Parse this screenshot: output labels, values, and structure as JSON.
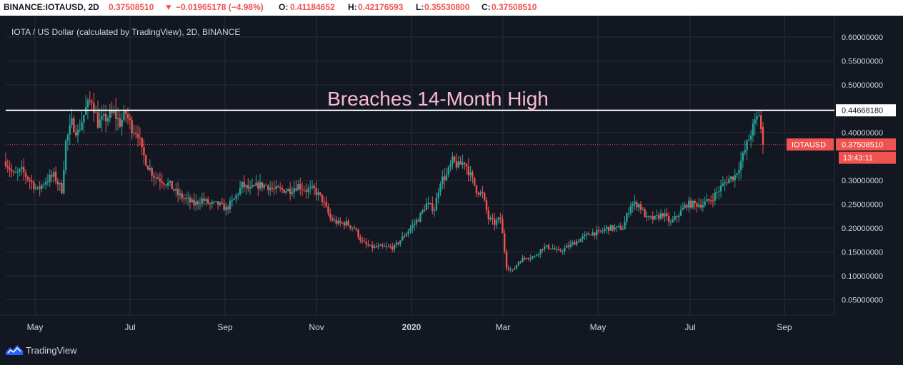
{
  "header": {
    "symbol": "BINANCE:IOTAUSD, 2D",
    "last": "0.37508510",
    "change_arrow": "▼",
    "change": "−0.01965178 (−4.98%)",
    "open_label": "O:",
    "open": "0.41184652",
    "high_label": "H:",
    "high": "0.42176593",
    "low_label": "L:",
    "low": "0.35530800",
    "close_label": "C:",
    "close": "0.37508510"
  },
  "legend": "IOTA / US Dollar (calculated by TradingView), 2D, BINANCE",
  "annotation": "Breaches 14-Month High",
  "price_tags": {
    "level_value": "0.44668180",
    "symbol": "IOTAUSD",
    "price": "0.37508510",
    "countdown": "13:43:11"
  },
  "footer": {
    "brand": "TradingView"
  },
  "colors": {
    "up": "#26a69a",
    "down": "#ef5350",
    "background": "#131722",
    "grid": "#2a2e39",
    "annotation": "#f8bbd0",
    "line": "#ffffff"
  },
  "chart_data": {
    "type": "candlestick",
    "y_ticks": [
      "0.60000000",
      "0.55000000",
      "0.50000000",
      "0.40000000",
      "0.30000000",
      "0.25000000",
      "0.20000000",
      "0.15000000",
      "0.10000000",
      "0.05000000"
    ],
    "x_ticks": [
      "May",
      "Jul",
      "Sep",
      "Nov",
      "2020",
      "Mar",
      "May",
      "Jul",
      "Sep"
    ],
    "ylim": [
      0.03,
      0.64
    ],
    "horizontal_level": 0.4466818,
    "last_price": 0.3750851,
    "close_path": [
      [
        0,
        0.34
      ],
      [
        4,
        0.31
      ],
      [
        8,
        0.32
      ],
      [
        12,
        0.3
      ],
      [
        16,
        0.28
      ],
      [
        20,
        0.3
      ],
      [
        24,
        0.31
      ],
      [
        28,
        0.28
      ],
      [
        30,
        0.38
      ],
      [
        33,
        0.42
      ],
      [
        36,
        0.4
      ],
      [
        40,
        0.45
      ],
      [
        43,
        0.47
      ],
      [
        46,
        0.42
      ],
      [
        50,
        0.43
      ],
      [
        54,
        0.44
      ],
      [
        57,
        0.42
      ],
      [
        60,
        0.44
      ],
      [
        63,
        0.41
      ],
      [
        66,
        0.4
      ],
      [
        68,
        0.36
      ],
      [
        71,
        0.33
      ],
      [
        74,
        0.31
      ],
      [
        78,
        0.3
      ],
      [
        82,
        0.29
      ],
      [
        86,
        0.27
      ],
      [
        90,
        0.26
      ],
      [
        94,
        0.25
      ],
      [
        98,
        0.26
      ],
      [
        102,
        0.25
      ],
      [
        106,
        0.25
      ],
      [
        110,
        0.24
      ],
      [
        114,
        0.26
      ],
      [
        118,
        0.29
      ],
      [
        122,
        0.28
      ],
      [
        126,
        0.29
      ],
      [
        130,
        0.29
      ],
      [
        134,
        0.28
      ],
      [
        138,
        0.28
      ],
      [
        142,
        0.28
      ],
      [
        146,
        0.29
      ],
      [
        150,
        0.28
      ],
      [
        154,
        0.28
      ],
      [
        158,
        0.26
      ],
      [
        162,
        0.22
      ],
      [
        166,
        0.21
      ],
      [
        170,
        0.21
      ],
      [
        174,
        0.2
      ],
      [
        178,
        0.17
      ],
      [
        182,
        0.16
      ],
      [
        186,
        0.16
      ],
      [
        190,
        0.16
      ],
      [
        194,
        0.16
      ],
      [
        198,
        0.18
      ],
      [
        202,
        0.2
      ],
      [
        206,
        0.22
      ],
      [
        210,
        0.25
      ],
      [
        214,
        0.24
      ],
      [
        217,
        0.3
      ],
      [
        220,
        0.31
      ],
      [
        223,
        0.34
      ],
      [
        226,
        0.33
      ],
      [
        229,
        0.34
      ],
      [
        232,
        0.31
      ],
      [
        235,
        0.28
      ],
      [
        238,
        0.27
      ],
      [
        241,
        0.22
      ],
      [
        244,
        0.21
      ],
      [
        247,
        0.22
      ],
      [
        250,
        0.12
      ],
      [
        253,
        0.11
      ],
      [
        256,
        0.13
      ],
      [
        260,
        0.14
      ],
      [
        264,
        0.14
      ],
      [
        268,
        0.16
      ],
      [
        272,
        0.16
      ],
      [
        276,
        0.15
      ],
      [
        280,
        0.16
      ],
      [
        284,
        0.17
      ],
      [
        288,
        0.18
      ],
      [
        292,
        0.19
      ],
      [
        296,
        0.19
      ],
      [
        300,
        0.2
      ],
      [
        304,
        0.2
      ],
      [
        308,
        0.2
      ],
      [
        312,
        0.25
      ],
      [
        316,
        0.25
      ],
      [
        320,
        0.22
      ],
      [
        324,
        0.22
      ],
      [
        328,
        0.23
      ],
      [
        332,
        0.21
      ],
      [
        336,
        0.23
      ],
      [
        340,
        0.25
      ],
      [
        344,
        0.25
      ],
      [
        348,
        0.25
      ],
      [
        352,
        0.26
      ],
      [
        356,
        0.28
      ],
      [
        360,
        0.3
      ],
      [
        364,
        0.31
      ],
      [
        368,
        0.35
      ],
      [
        372,
        0.4
      ],
      [
        374,
        0.42
      ],
      [
        376,
        0.44
      ],
      [
        378,
        0.3750851
      ]
    ]
  }
}
